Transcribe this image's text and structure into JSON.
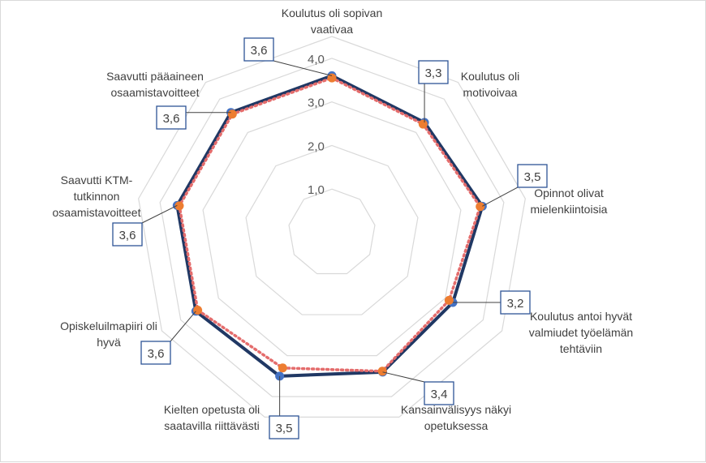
{
  "chart_data": {
    "type": "radar",
    "categories": [
      "Koulutus oli sopivan vaativaa",
      "Koulutus oli motivoivaa",
      "Opinnot olivat mielenkiintoisia",
      "Koulutus antoi hyvät valmiudet työelämän tehtäviin",
      "Kansainvälisyys näkyi opetuksessa",
      "Kielten opetusta oli saatavilla riittävästi",
      "Opiskeluilmapiiri oli hyvä",
      "Saavutti KTM-tutkinnon osaamistavoitteet",
      "Saavutti pääaineen osaamistavoitteet"
    ],
    "category_lines": [
      [
        "Koulutus oli sopivan",
        "vaativaa"
      ],
      [
        "Koulutus oli",
        "motivoivaa"
      ],
      [
        "Opinnot olivat",
        "mielenkiintoisia"
      ],
      [
        "Koulutus antoi hyvät",
        "valmiudet työelämän",
        "tehtäviin"
      ],
      [
        "Kansainvälisyys näkyi",
        "opetuksessa"
      ],
      [
        "Kielten opetusta oli",
        "saatavilla riittävästi"
      ],
      [
        "Opiskeluilmapiiri oli",
        "hyvä"
      ],
      [
        "Saavutti KTM-",
        "tutkinnon",
        "osaamistavoitteet"
      ],
      [
        "Saavutti pääaineen",
        "osaamistavoitteet"
      ]
    ],
    "rlim": [
      0,
      4.5
    ],
    "ticks": [
      1.0,
      2.0,
      3.0,
      4.0
    ],
    "tick_labels": [
      "1,0",
      "2,0",
      "3,0",
      "4,0"
    ],
    "series": [
      {
        "values": [
          3.6,
          3.3,
          3.5,
          3.2,
          3.4,
          3.5,
          3.6,
          3.6,
          3.6
        ],
        "color": "#203864",
        "style": "solid",
        "marker": "#4472c4"
      },
      {
        "values": [
          3.55,
          3.25,
          3.45,
          3.1,
          3.38,
          3.3,
          3.55,
          3.55,
          3.55
        ],
        "color": "#e46c6c",
        "style": "dotted",
        "marker": "#ed7d31"
      }
    ],
    "data_labels": [
      "3,6",
      "3,3",
      "3,5",
      "3,2",
      "3,4",
      "3,5",
      "3,6",
      "3,6",
      "3,6"
    ],
    "grid": true,
    "legend": "none",
    "colors": {
      "grid": "#d9d9d9",
      "label_box": "#2e5496"
    }
  }
}
